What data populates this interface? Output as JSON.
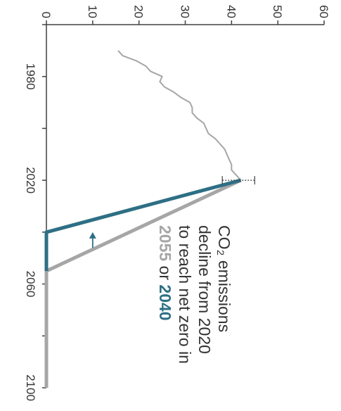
{
  "chart_data": {
    "type": "line",
    "title": "",
    "xlabel": "",
    "ylabel": "",
    "xlim": [
      1960,
      2100
    ],
    "ylim": [
      0,
      60
    ],
    "x_ticks": [
      "1980",
      "2020",
      "2060",
      "2100"
    ],
    "y_ticks": [
      "0",
      "10",
      "20",
      "30",
      "40",
      "50",
      "60"
    ],
    "grid": false,
    "series": [
      {
        "id": "historical",
        "color": "#a6a6a6",
        "x": [
          1970,
          1972,
          1974,
          1976,
          1978,
          1980,
          1982,
          1984,
          1986,
          1988,
          1990,
          1992,
          1994,
          1996,
          1998,
          2000,
          2002,
          2004,
          2006,
          2008,
          2010,
          2012,
          2014,
          2016,
          2018,
          2019,
          2020
        ],
        "y": [
          15.5,
          16.5,
          19.5,
          21.5,
          22.5,
          25.0,
          24.5,
          25.5,
          27.5,
          29.0,
          31.0,
          31.5,
          31.5,
          32.5,
          34.0,
          34.5,
          35.0,
          36.5,
          37.5,
          38.5,
          39.0,
          39.5,
          40.0,
          40.0,
          41.0,
          41.5,
          42.0
        ]
      },
      {
        "id": "path-2055",
        "color": "#a6a6a6",
        "x": [
          2020,
          2055,
          2100
        ],
        "y": [
          42.0,
          0,
          0
        ]
      },
      {
        "id": "path-2040",
        "color": "#2e6f85",
        "x": [
          2020,
          2040,
          2055
        ],
        "y": [
          42.0,
          0,
          0
        ]
      }
    ],
    "error_bar": {
      "x": 2020,
      "y_low": 38.0,
      "y_high": 45.0
    },
    "arrow": {
      "x_from": 2046,
      "x_to": 2040,
      "y": 10
    }
  },
  "annotation": {
    "line1": "CO₂ emissions",
    "line2": "decline from 2020",
    "line3": "to reach net zero in",
    "year_grey": "2055",
    "connector": " or ",
    "year_blue": "2040"
  },
  "colors": {
    "axis": "#404040",
    "grey": "#a6a6a6",
    "blue": "#2e6f85",
    "text": "#333333"
  }
}
